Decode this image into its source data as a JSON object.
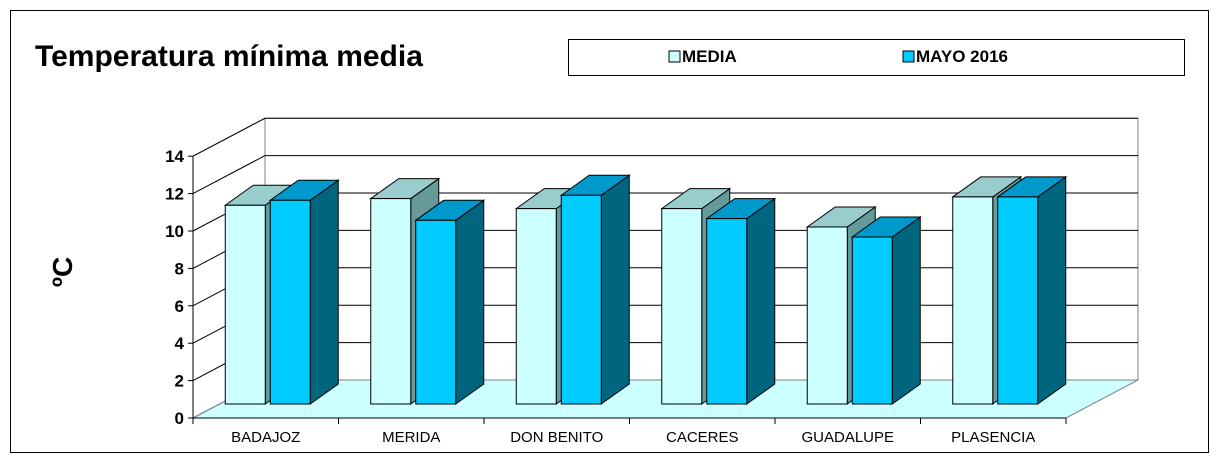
{
  "chart_data": {
    "type": "bar",
    "title": "Temperatura mínima media",
    "xlabel": "",
    "ylabel": "ºC",
    "categories": [
      "BADAJOZ",
      "MERIDA",
      "DON BENITO",
      "CACERES",
      "GUADALUPE",
      "PLASENCIA"
    ],
    "series": [
      {
        "name": "MEDIA",
        "values": [
          11.9,
          12.3,
          11.7,
          11.7,
          10.6,
          12.4
        ]
      },
      {
        "name": "MAYO 2016",
        "values": [
          12.2,
          11.0,
          12.5,
          11.1,
          10.0,
          12.4
        ]
      }
    ],
    "ylim": [
      0,
      14
    ],
    "yticks": [
      "0",
      "2",
      "4",
      "6",
      "8",
      "10",
      "12",
      "14"
    ],
    "grid": true,
    "legend_position": "top-right",
    "three_d": true
  },
  "colors": {
    "media_front": "#ccffff",
    "media_top": "#99cccc",
    "media_side": "#669999",
    "mayo_front": "#00ccff",
    "mayo_top": "#0099cc",
    "mayo_side": "#006680",
    "floor": "#ccffff",
    "gridline": "#000000",
    "frame": "#808080"
  }
}
